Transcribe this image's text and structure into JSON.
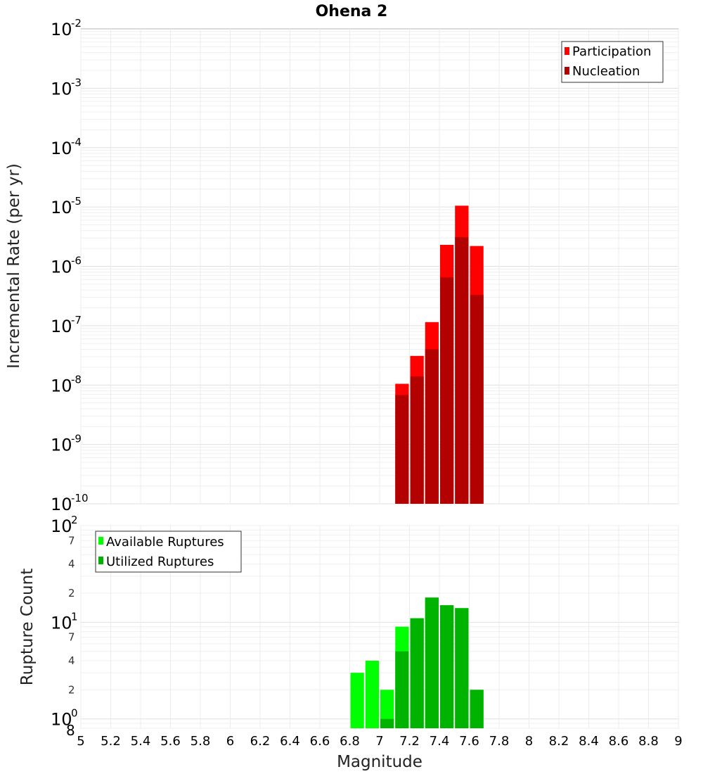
{
  "title": "Ohena 2",
  "xlabel": "Magnitude",
  "colors": {
    "participation": "#ff0000",
    "nucleation": "#b30000",
    "available": "#00ff00",
    "utilized": "#00b300"
  },
  "x_axis": {
    "range": [
      5,
      9
    ],
    "ticks": [
      "5",
      "5.2",
      "5.4",
      "5.6",
      "5.8",
      "6",
      "6.2",
      "6.4",
      "6.6",
      "6.8",
      "7",
      "7.2",
      "7.4",
      "7.6",
      "7.8",
      "8",
      "8.2",
      "8.4",
      "8.6",
      "8.8",
      "9"
    ],
    "tick_values": [
      5,
      5.2,
      5.4,
      5.6,
      5.8,
      6,
      6.2,
      6.4,
      6.6,
      6.8,
      7,
      7.2,
      7.4,
      7.6,
      7.8,
      8,
      8.2,
      8.4,
      8.6,
      8.8,
      9
    ]
  },
  "chart_data": [
    {
      "type": "bar",
      "ylabel": "Incremental Rate (per yr)",
      "yscale": "log",
      "ylim": [
        1e-10,
        0.01
      ],
      "y_tick_exponents": [
        "-10",
        "-9",
        "-8",
        "-7",
        "-6",
        "-5",
        "-4",
        "-3",
        "-2"
      ],
      "legend": {
        "position": "top-right",
        "entries": [
          "Participation",
          "Nucleation"
        ]
      },
      "grid": true,
      "x": [
        7.15,
        7.25,
        7.35,
        7.45,
        7.55,
        7.65
      ],
      "series": [
        {
          "name": "Participation",
          "values": [
            1.05e-08,
            3.1e-08,
            1.15e-07,
            2.3e-06,
            1.05e-05,
            2.2e-06
          ]
        },
        {
          "name": "Nucleation",
          "values": [
            6.8e-09,
            1.4e-08,
            4e-08,
            6.5e-07,
            3.1e-06,
            3.3e-07
          ]
        }
      ]
    },
    {
      "type": "bar",
      "ylabel": "Rupture Count",
      "yscale": "log",
      "ylim": [
        0.8,
        100
      ],
      "y_tick_labels": {
        "major": [
          {
            "base": "10",
            "exp": "0",
            "value": 1
          },
          {
            "base": "10",
            "exp": "1",
            "value": 10
          },
          {
            "base": "10",
            "exp": "2",
            "value": 100
          }
        ],
        "minor": [
          {
            "label": "8",
            "value": 0.8
          },
          {
            "label": "2",
            "value": 2
          },
          {
            "label": "4",
            "value": 4
          },
          {
            "label": "7",
            "value": 7
          },
          {
            "label": "2",
            "value": 20
          },
          {
            "label": "4",
            "value": 40
          },
          {
            "label": "7",
            "value": 70
          }
        ]
      },
      "legend": {
        "position": "top-left",
        "entries": [
          "Available Ruptures",
          "Utilized Ruptures"
        ]
      },
      "grid": true,
      "x": [
        6.85,
        6.95,
        7.05,
        7.15,
        7.25,
        7.35,
        7.45,
        7.55,
        7.65
      ],
      "series": [
        {
          "name": "Available Ruptures",
          "values": [
            3,
            4,
            2,
            9,
            11,
            18,
            15,
            14,
            2
          ]
        },
        {
          "name": "Utilized Ruptures",
          "values": [
            0,
            0,
            1,
            5,
            11,
            18,
            15,
            14,
            2
          ]
        }
      ]
    }
  ]
}
